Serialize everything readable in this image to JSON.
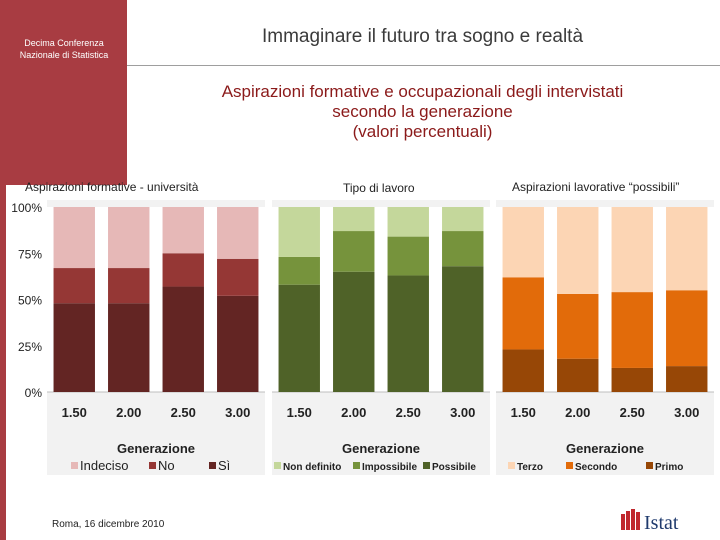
{
  "header": {
    "conference": [
      "Decima Conferenza",
      "Nazionale di Statistica"
    ],
    "title": "Immaginare il futuro tra sogno e realtà"
  },
  "main_title": [
    "Aspirazioni formative e occupazionali degli intervistati",
    "secondo la generazione",
    "(valori percentuali)"
  ],
  "footer": {
    "date": "Roma, 16 dicembre 2010",
    "logo_text": "Istat"
  },
  "colors": {
    "sidebar": "#a83c42",
    "panel1": [
      "#e6b8b7",
      "#953735",
      "#632523"
    ],
    "panel2": [
      "#c4d79b",
      "#76933c",
      "#4f6228"
    ],
    "panel3": [
      "#fcd5b4",
      "#e26b0a",
      "#974706"
    ]
  },
  "chart_data": [
    {
      "type": "bar",
      "stacked": true,
      "title": "Aspirazioni formative - università",
      "xlabel": "Generazione",
      "categories": [
        "1.50",
        "2.00",
        "2.50",
        "3.00"
      ],
      "y_ticks": [
        "0%",
        "25%",
        "50%",
        "75%",
        "100%"
      ],
      "ylim": [
        0,
        100
      ],
      "series": [
        {
          "name": "Sì",
          "values": [
            48,
            48,
            57,
            52
          ]
        },
        {
          "name": "No",
          "values": [
            19,
            19,
            18,
            20
          ]
        },
        {
          "name": "Indeciso",
          "values": [
            33,
            33,
            25,
            28
          ]
        }
      ],
      "legend_order": [
        "Indeciso",
        "No",
        "Sì"
      ]
    },
    {
      "type": "bar",
      "stacked": true,
      "title": "Tipo di lavoro",
      "xlabel": "Generazione",
      "categories": [
        "1.50",
        "2.00",
        "2.50",
        "3.00"
      ],
      "ylim": [
        0,
        100
      ],
      "series": [
        {
          "name": "Possibile",
          "values": [
            58,
            65,
            63,
            68
          ]
        },
        {
          "name": "Impossibile",
          "values": [
            15,
            22,
            21,
            19
          ]
        },
        {
          "name": "Non definito",
          "values": [
            27,
            13,
            16,
            13
          ]
        }
      ],
      "legend_order": [
        "Non definito",
        "Impossibile",
        "Possibile"
      ]
    },
    {
      "type": "bar",
      "stacked": true,
      "title": "Aspirazioni lavorative “possibili”",
      "xlabel": "Generazione",
      "categories": [
        "1.50",
        "2.00",
        "2.50",
        "3.00"
      ],
      "ylim": [
        0,
        100
      ],
      "series": [
        {
          "name": "Primo",
          "values": [
            23,
            18,
            13,
            14
          ]
        },
        {
          "name": "Secondo",
          "values": [
            39,
            35,
            41,
            41
          ]
        },
        {
          "name": "Terzo",
          "values": [
            38,
            47,
            46,
            45
          ]
        }
      ],
      "legend_order": [
        "Terzo",
        "Secondo",
        "Primo"
      ]
    }
  ]
}
